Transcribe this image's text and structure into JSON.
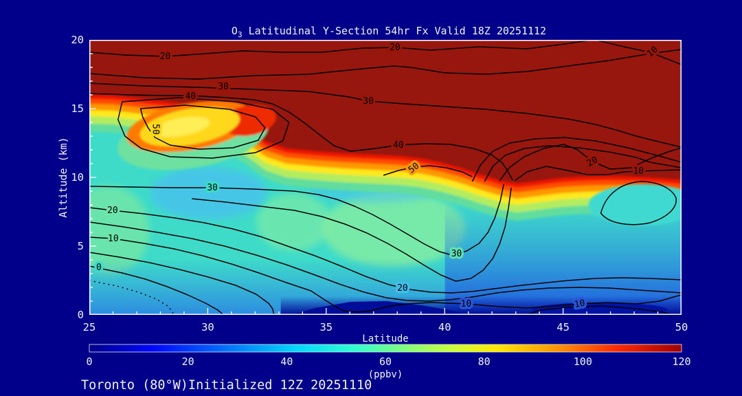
{
  "window": {
    "background": "#00008b",
    "frame_color": "#ffffff",
    "text_color": "#f2f2f2"
  },
  "title": {
    "prefix": "O",
    "sub": "3",
    "rest": " Latitudinal Y-Section 54hr  Fx Valid 18Z 20251112"
  },
  "footer": "Toronto (80°W)Initialized 12Z 20251110",
  "axes": {
    "x": {
      "label": "Latitude",
      "tick_labels": [
        "25",
        "30",
        "35",
        "40",
        "45",
        "50"
      ],
      "min": 25,
      "max": 50
    },
    "y": {
      "label": "Altitude (km)",
      "tick_labels": [
        "0",
        "5",
        "10",
        "15",
        "20"
      ],
      "min": 0,
      "max": 20
    }
  },
  "colorbar": {
    "tick_labels": [
      "0",
      "20",
      "40",
      "60",
      "80",
      "100",
      "120"
    ],
    "units": "(ppbv)",
    "min": 0,
    "max": 120
  },
  "plot": {
    "contour_labels": [
      "20",
      "20",
      "30",
      "40",
      "50",
      "30",
      "40",
      "50",
      "10",
      "20",
      "10",
      "30",
      "20",
      "10",
      "0",
      "30",
      "20",
      "10",
      "10"
    ]
  },
  "chart_data": {
    "type": "filled_contour_cross_section",
    "title": "O3 Latitudinal Y-Section 54hr  Fx Valid 18Z 20251112",
    "xlabel": "Latitude",
    "ylabel": "Altitude (km)",
    "x_range": [
      25,
      50
    ],
    "y_range": [
      0,
      20
    ],
    "footer": "Toronto (80°W)Initialized 12Z 20251110",
    "colorbar": {
      "min": 0,
      "max": 120,
      "ticks": [
        0,
        20,
        40,
        60,
        80,
        100,
        120
      ],
      "units": "ppbv",
      "palette": "jet"
    },
    "contour_line_labeled_values": [
      0,
      10,
      20,
      30,
      40,
      50
    ],
    "fill_field_features": [
      "saturated dark-red fill (>120 ppbv, stratosphere) above ~16 km at 25N sloping down to ~10 km from 34N to 50N",
      "yellow-orange tongue (~60-90 ppbv) embedded near 27-31N at 12-15 km",
      "tropopause fold: tightly packed black contours near 41-43N between 9 and 13 km",
      "tropospheric background 30-50 ppbv (cyan/turquoise) with ~55-65 ppbv green patch near 36-40N at 4-8 km",
      "cyan pocket (~45 ppbv) below the red layer near 46-50N at 7-9 km",
      "low ozone (<20 ppbv, blue to navy) below 2 km, darkest near 34-40N and 43-50N near the surface"
    ]
  }
}
